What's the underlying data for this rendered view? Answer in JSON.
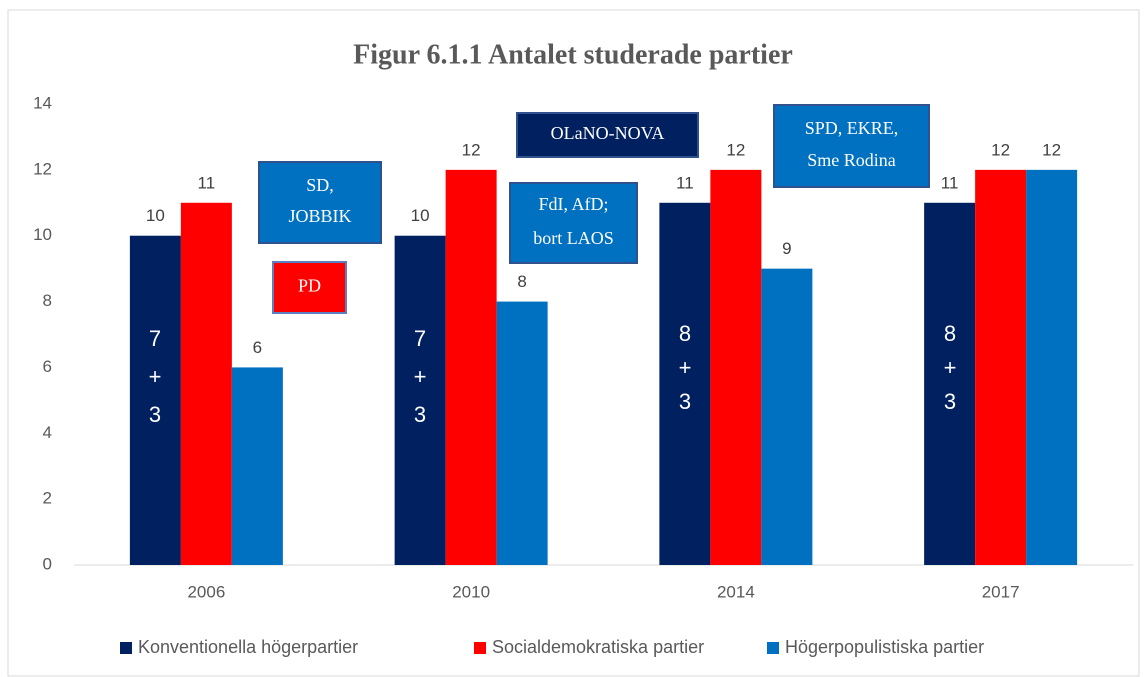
{
  "chart_data": {
    "type": "bar",
    "title": "Figur 6.1.1 Antalet studerade partier",
    "categories": [
      "2006",
      "2010",
      "2014",
      "2017"
    ],
    "series": [
      {
        "name": "Konventionella högerpartier",
        "color": "#002060",
        "values": [
          10,
          10,
          11,
          11
        ]
      },
      {
        "name": "Socialdemokratiska partier",
        "color": "#ff0000",
        "values": [
          11,
          12,
          12,
          12
        ]
      },
      {
        "name": "Högerpopulistiska partier",
        "color": "#0070c0",
        "values": [
          6,
          8,
          9,
          12
        ]
      }
    ],
    "ylim": [
      0,
      14
    ],
    "yticks": [
      0,
      2,
      4,
      6,
      8,
      10,
      12,
      14
    ],
    "grid": false,
    "legend": "bottom",
    "annotations": [
      {
        "text": [
          "SD,",
          "JOBBIK"
        ]
      },
      {
        "text": [
          "PD"
        ]
      },
      {
        "text": [
          "OLaNO-NOVA"
        ]
      },
      {
        "text": [
          "FdI, AfD;",
          "bort LAOS"
        ]
      },
      {
        "text": [
          "SPD, EKRE,",
          "Sme Rodina"
        ]
      },
      {
        "text": [
          "7",
          "+",
          "3"
        ]
      },
      {
        "text": [
          "7",
          "+",
          "3"
        ]
      },
      {
        "text": [
          "8",
          "+",
          "3"
        ]
      },
      {
        "text": [
          "8",
          "+",
          "3"
        ]
      }
    ]
  }
}
